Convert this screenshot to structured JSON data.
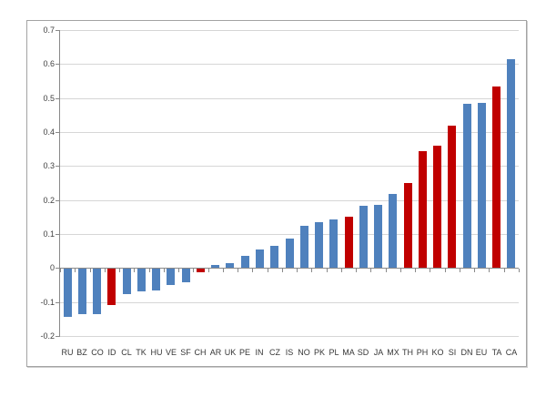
{
  "chart_data": {
    "type": "bar",
    "title": "",
    "xlabel": "",
    "ylabel": "",
    "categories": [
      "RU",
      "BZ",
      "CO",
      "ID",
      "CL",
      "TK",
      "HU",
      "VE",
      "SF",
      "CH",
      "AR",
      "UK",
      "PE",
      "IN",
      "CZ",
      "IS",
      "NO",
      "PK",
      "PL",
      "MA",
      "SD",
      "JA",
      "MX",
      "TH",
      "PH",
      "KO",
      "SI",
      "DN",
      "EU",
      "TA",
      "CA"
    ],
    "values": [
      -0.14,
      -0.133,
      -0.132,
      -0.105,
      -0.075,
      -0.067,
      -0.064,
      -0.048,
      -0.04,
      -0.01,
      0.01,
      0.013,
      0.035,
      0.055,
      0.064,
      0.087,
      0.125,
      0.135,
      0.142,
      0.15,
      0.182,
      0.185,
      0.218,
      0.25,
      0.345,
      0.36,
      0.42,
      0.482,
      0.486,
      0.535,
      0.615
    ],
    "bar_colors": [
      "#4f81bd",
      "#4f81bd",
      "#4f81bd",
      "#c00000",
      "#4f81bd",
      "#4f81bd",
      "#4f81bd",
      "#4f81bd",
      "#4f81bd",
      "#c00000",
      "#4f81bd",
      "#4f81bd",
      "#4f81bd",
      "#4f81bd",
      "#4f81bd",
      "#4f81bd",
      "#4f81bd",
      "#4f81bd",
      "#4f81bd",
      "#c00000",
      "#4f81bd",
      "#4f81bd",
      "#4f81bd",
      "#c00000",
      "#c00000",
      "#c00000",
      "#c00000",
      "#4f81bd",
      "#4f81bd",
      "#c00000",
      "#4f81bd"
    ],
    "highlighted_categories": [
      "ID",
      "CH",
      "MA",
      "TH",
      "PH",
      "KO",
      "SI",
      "TA"
    ],
    "ylim": [
      -0.2,
      0.7
    ],
    "ytick_step": 0.1,
    "y_tick_labels": [
      "0.7",
      "0.6",
      "0.5",
      "0.4",
      "0.3",
      "0.2",
      "0.1",
      "0",
      "-0.1",
      "-0.2"
    ],
    "grid": true,
    "legend_position": "none",
    "colors": {
      "default_bar": "#4f81bd",
      "highlight_bar": "#c00000",
      "gridline": "#d6d6d6",
      "axis": "#898989",
      "label_text": "#3f3f3f",
      "frame_border": "#a3a3a3"
    }
  }
}
